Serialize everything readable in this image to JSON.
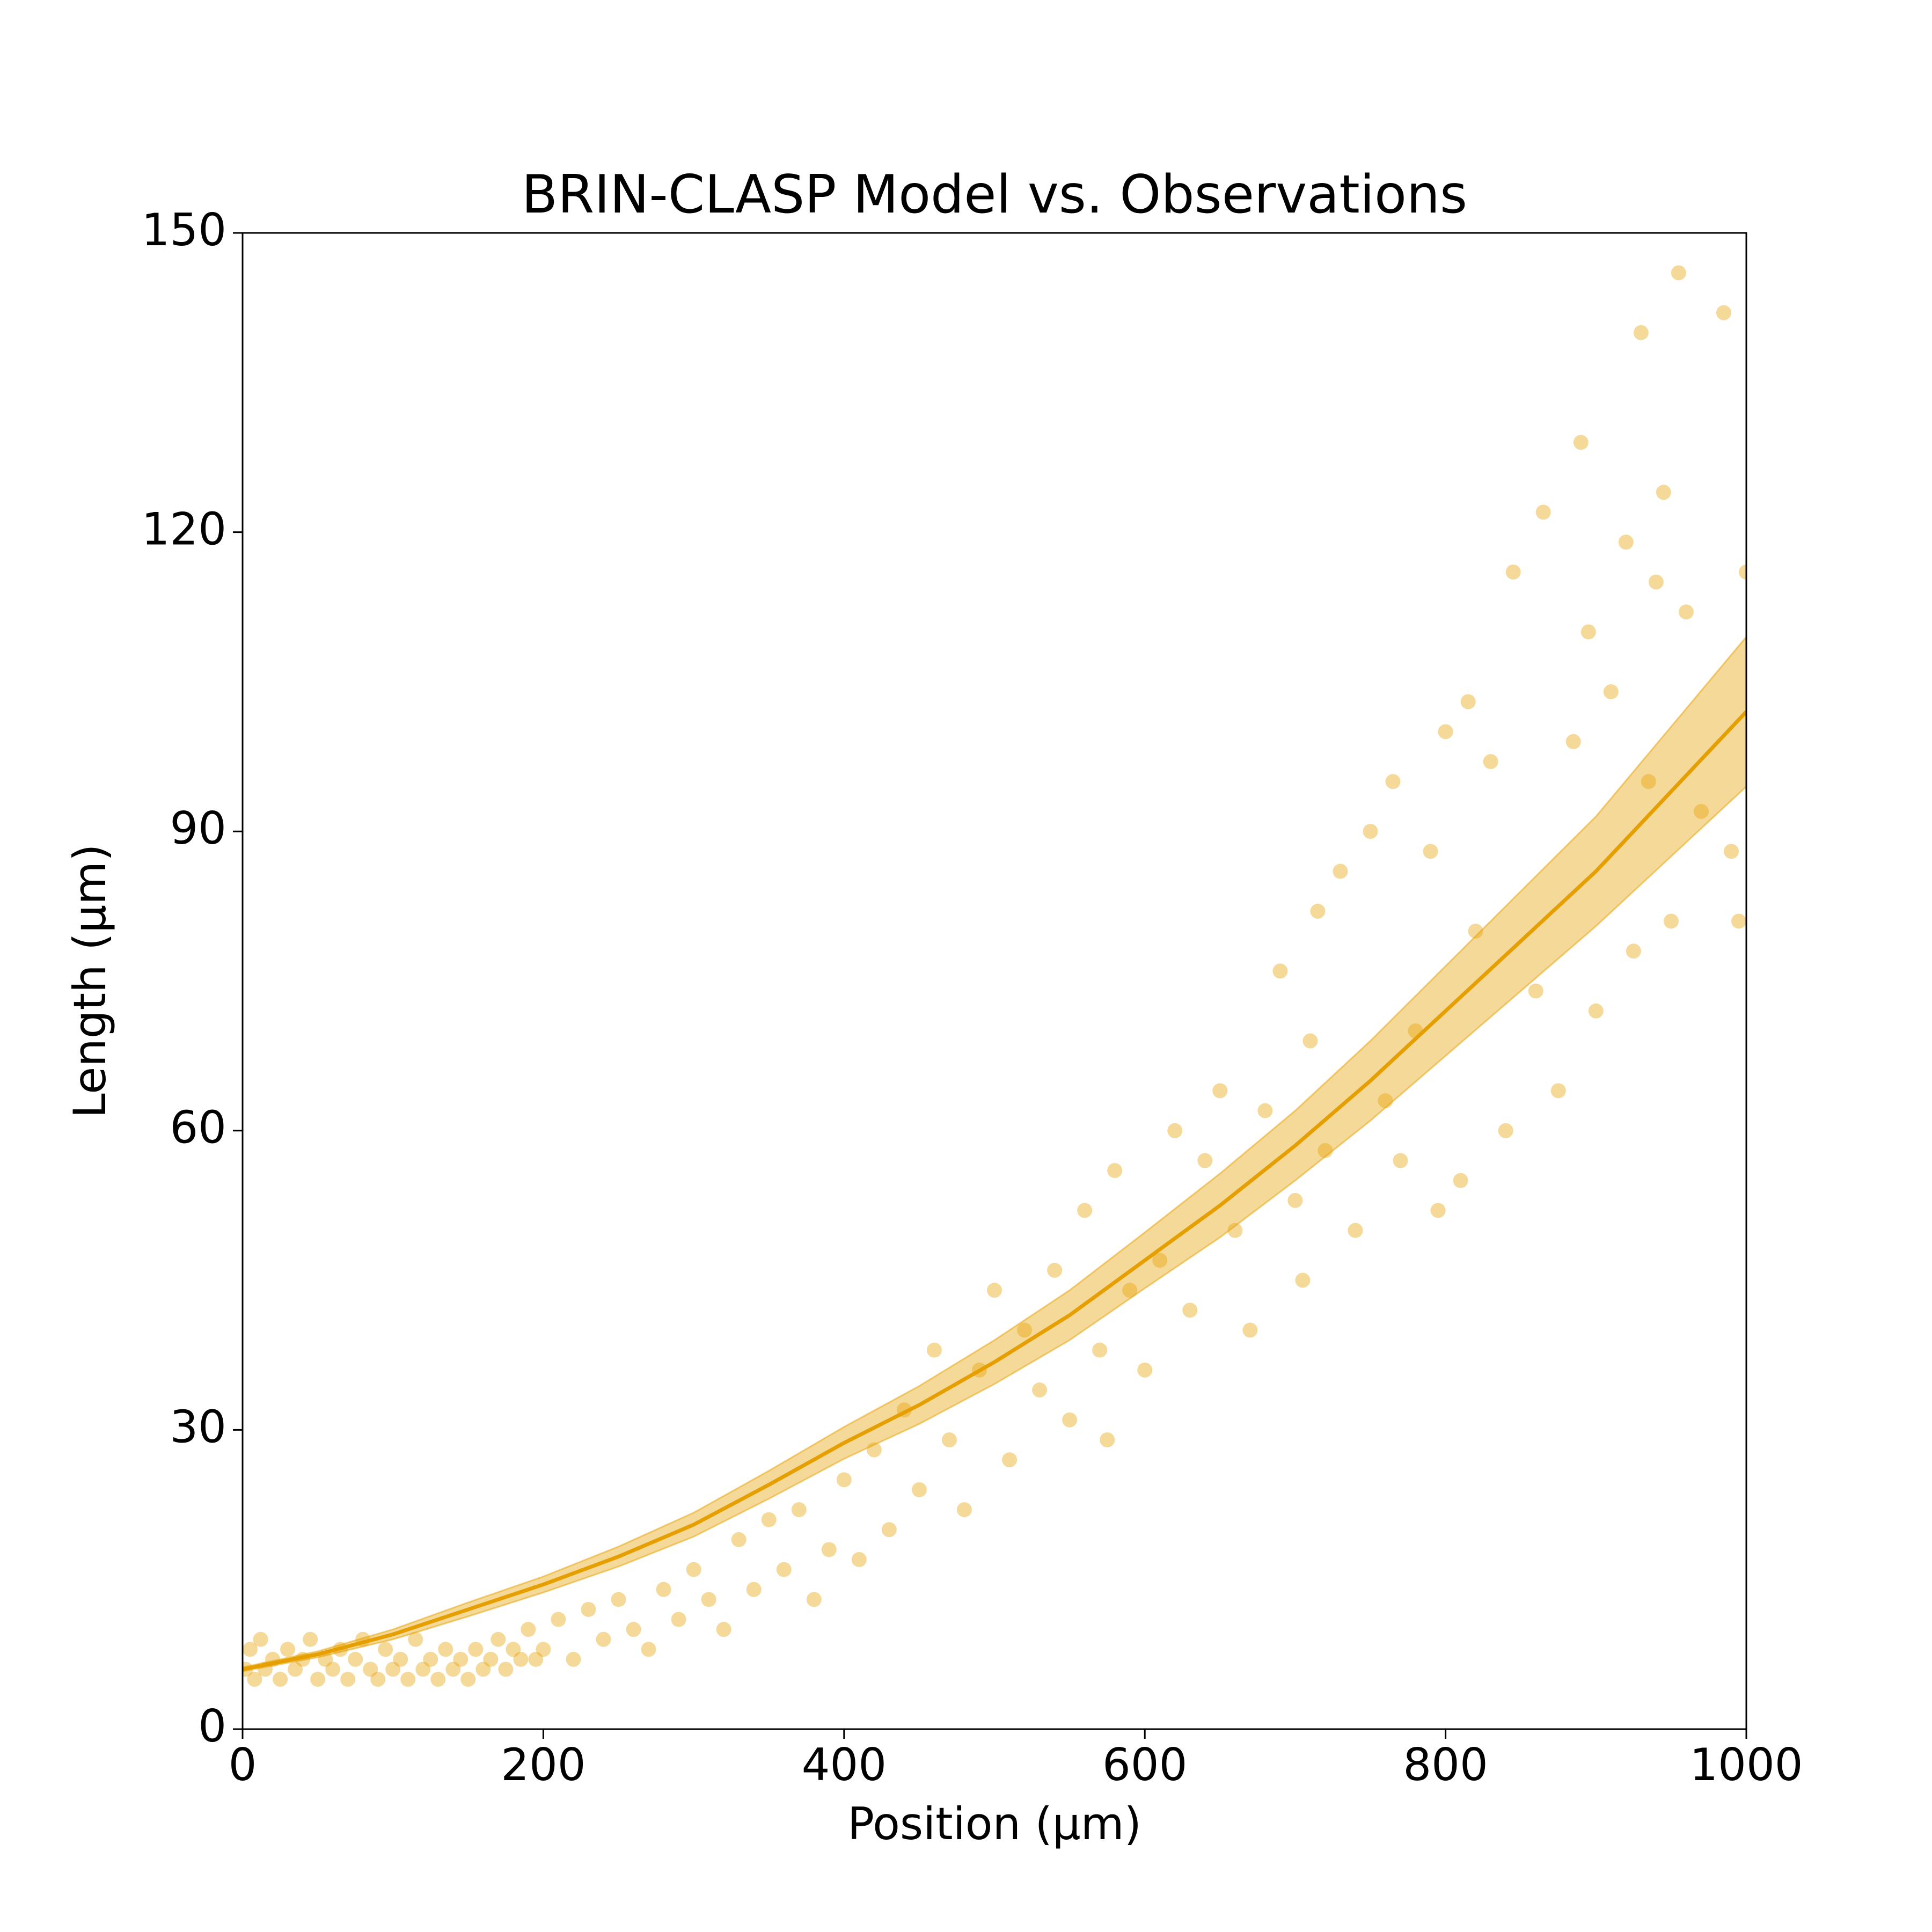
{
  "chart_data": {
    "type": "scatter",
    "title": "BRIN-CLASP Model vs. Observations",
    "x_label": "Position (μm)",
    "y_label": "Length (μm)",
    "xlim": [
      0,
      1000
    ],
    "ylim": [
      0,
      150
    ],
    "xticks": [
      0,
      200,
      400,
      600,
      800,
      1000
    ],
    "yticks": [
      0,
      30,
      60,
      90,
      120,
      150
    ],
    "color": "#e69f00",
    "x": [
      2,
      5,
      8,
      12,
      15,
      20,
      25,
      30,
      35,
      40,
      45,
      50,
      55,
      60,
      65,
      70,
      75,
      80,
      85,
      90,
      95,
      100,
      105,
      110,
      115,
      120,
      125,
      130,
      135,
      140,
      145,
      150,
      155,
      160,
      165,
      170,
      175,
      180,
      185,
      190,
      195,
      200,
      210,
      220,
      230,
      240,
      250,
      260,
      270,
      280,
      290,
      300,
      310,
      320,
      330,
      340,
      350,
      360,
      370,
      380,
      390,
      400,
      410,
      420,
      430,
      440,
      450,
      460,
      470,
      480,
      490,
      500,
      510,
      520,
      530,
      540,
      550,
      560,
      570,
      575,
      580,
      590,
      600,
      610,
      620,
      630,
      640,
      650,
      660,
      670,
      680,
      690,
      700,
      705,
      710,
      715,
      720,
      730,
      740,
      750,
      760,
      765,
      770,
      780,
      790,
      795,
      800,
      810,
      815,
      820,
      830,
      840,
      845,
      860,
      865,
      875,
      885,
      890,
      895,
      900,
      910,
      920,
      925,
      930,
      935,
      940,
      945,
      950,
      955,
      960,
      970,
      985,
      990,
      995,
      1000
    ],
    "values": [
      6,
      8,
      5,
      9,
      6,
      7,
      5,
      8,
      6,
      7,
      9,
      5,
      7,
      6,
      8,
      5,
      7,
      9,
      6,
      5,
      8,
      6,
      7,
      5,
      9,
      6,
      7,
      5,
      8,
      6,
      7,
      5,
      8,
      6,
      7,
      9,
      6,
      8,
      7,
      10,
      7,
      8,
      11,
      7,
      12,
      9,
      13,
      10,
      8,
      14,
      11,
      16,
      13,
      10,
      19,
      14,
      21,
      16,
      22,
      13,
      18,
      25,
      17,
      28,
      20,
      32,
      24,
      38,
      29,
      22,
      36,
      44,
      27,
      40,
      34,
      46,
      31,
      52,
      38,
      29,
      56,
      44,
      36,
      47,
      60,
      42,
      57,
      64,
      50,
      40,
      62,
      76,
      53,
      45,
      69,
      82,
      58,
      86,
      50,
      90,
      63,
      95,
      57,
      70,
      88,
      52,
      100,
      55,
      103,
      80,
      97,
      60,
      116,
      74,
      122,
      64,
      99,
      129,
      110,
      72,
      104,
      119,
      78,
      140,
      95,
      115,
      124,
      81,
      146,
      112,
      92,
      142,
      88,
      81,
      116
    ],
    "fit": {
      "x": [
        0,
        50,
        100,
        150,
        200,
        250,
        300,
        350,
        400,
        450,
        500,
        550,
        600,
        650,
        700,
        750,
        800,
        850,
        900,
        950,
        1000
      ],
      "values": [
        6,
        7.5,
        9.5,
        12,
        14.5,
        17.3,
        20.5,
        24.5,
        28.7,
        32.5,
        36.8,
        41.5,
        47,
        52.5,
        58.5,
        65,
        72,
        79,
        86,
        94,
        102
      ],
      "lower": [
        5.8,
        7.2,
        9,
        11.3,
        13.7,
        16.3,
        19.3,
        23.1,
        27.1,
        30.6,
        34.6,
        39,
        44.2,
        49.3,
        55,
        61,
        67.5,
        74,
        80.5,
        87.5,
        94.5
      ],
      "upper": [
        6.2,
        7.8,
        10,
        12.7,
        15.3,
        18.3,
        21.7,
        25.9,
        30.3,
        34.4,
        39,
        44,
        49.8,
        55.7,
        62,
        69,
        76.5,
        84,
        91.5,
        100.5,
        109.5
      ]
    }
  }
}
